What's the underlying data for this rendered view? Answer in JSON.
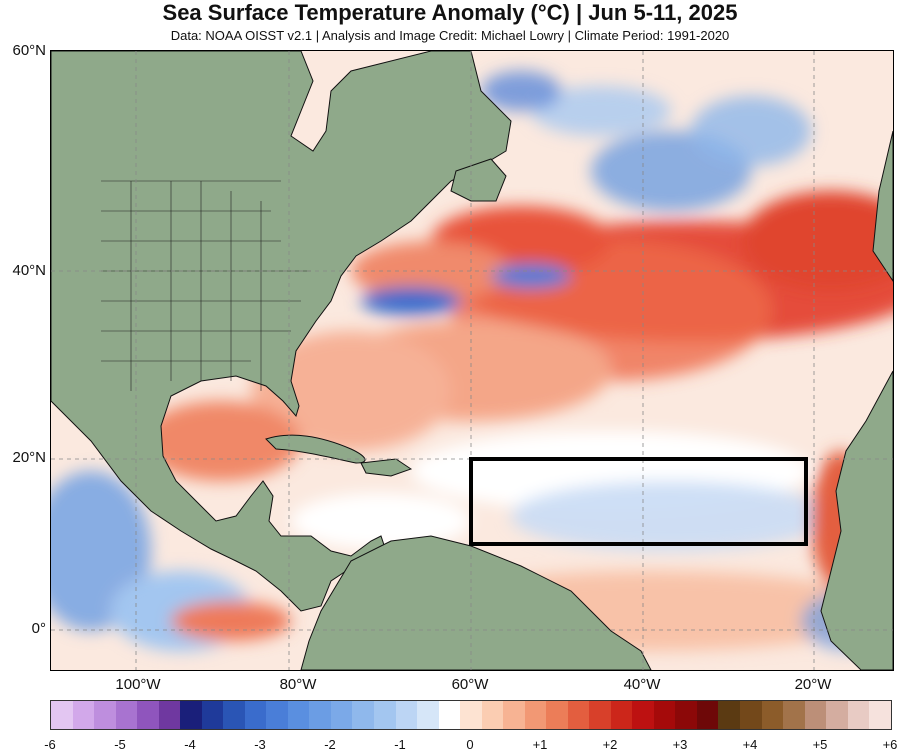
{
  "title": "Sea Surface Temperature Anomaly (°C) | Jun 5-11, 2025",
  "subtitle": "Data: NOAA OISST v2.1 | Analysis and Image Credit: Michael Lowry | Climate Period: 1991-2020",
  "map": {
    "region": "Tropical and North Atlantic Ocean",
    "projection": "lat-lon",
    "lat_labels": [
      "60°N",
      "40°N",
      "20°N",
      "0°"
    ],
    "lon_labels": [
      "100°W",
      "80°W",
      "60°W",
      "40°W",
      "20°W"
    ],
    "lat_range": [
      -4,
      60
    ],
    "lon_range": [
      -110,
      -12
    ],
    "highlight_box": {
      "lat_range": [
        10,
        20
      ],
      "lon_range": [
        -60,
        -20
      ],
      "color": "#000000"
    },
    "colors": {
      "land": "#8fa98a",
      "coast": "#000000",
      "grid": "#888888"
    }
  },
  "colorbar": {
    "tick_labels": [
      "-6",
      "-5",
      "-4",
      "-3",
      "-2",
      "-1",
      "0",
      "+1",
      "+2",
      "+3",
      "+4",
      "+5",
      "+6"
    ],
    "range": [
      -6,
      6
    ],
    "colors": [
      "#e3c6f2",
      "#d2a8ea",
      "#be8ede",
      "#a873d0",
      "#8f55bd",
      "#6f38a0",
      "#1a1f7a",
      "#1f3a9a",
      "#2a55b5",
      "#3a6ccc",
      "#4a7ed8",
      "#5a8fe0",
      "#6b9de4",
      "#7ba9e8",
      "#8fb8ec",
      "#a3c6f0",
      "#bcd5f4",
      "#d6e6f8",
      "#ffffff",
      "#fde3d2",
      "#fbcdb2",
      "#f7b393",
      "#f29874",
      "#ec7d58",
      "#e35e3f",
      "#d8402a",
      "#cc261a",
      "#bd1111",
      "#a50a0a",
      "#8c0808",
      "#6e0808",
      "#5b3a12",
      "#73481a",
      "#8c5c2a",
      "#a2734a",
      "#bc8f78",
      "#d4ada0",
      "#e8cbc4",
      "#f6e2dd"
    ]
  }
}
